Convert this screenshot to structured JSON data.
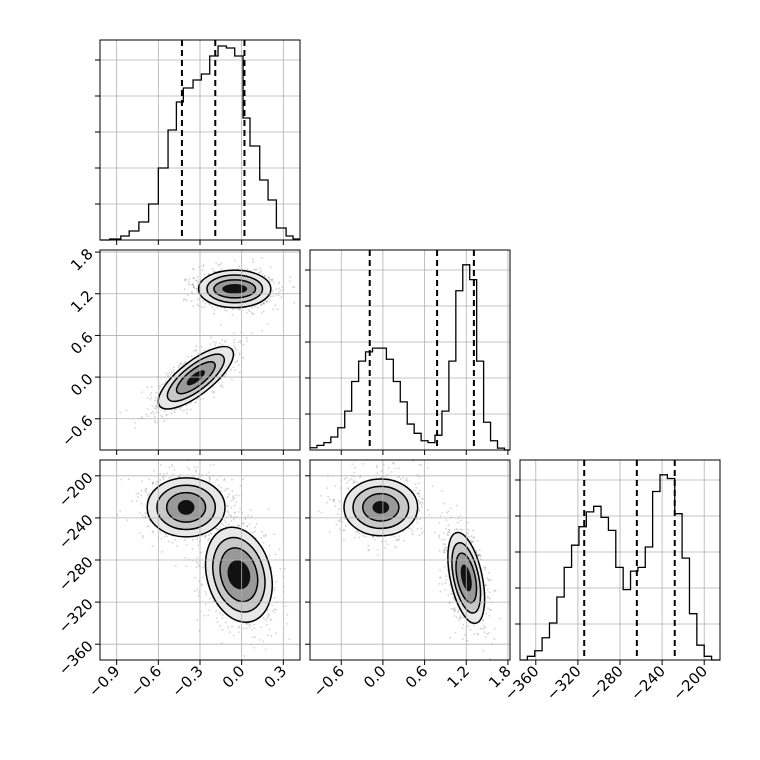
{
  "chart_data": {
    "type": "corner",
    "title": "",
    "parameters": [
      {
        "xlim": [
          -1.02,
          0.42
        ],
        "ticks": [
          -0.9,
          -0.6,
          -0.3,
          0.0,
          0.3
        ],
        "tick_labels": [
          "−0.9",
          "−0.6",
          "−0.3",
          "0.0",
          "0.3"
        ]
      },
      {
        "xlim": [
          -1.05,
          1.83
        ],
        "ticks": [
          -0.6,
          0.0,
          0.6,
          1.2,
          1.8
        ],
        "tick_labels": [
          "−0.6",
          "0.0",
          "0.6",
          "1.2",
          "1.8"
        ]
      },
      {
        "xlim": [
          -375,
          -185
        ],
        "ticks": [
          -360,
          -320,
          -280,
          -240,
          -200
        ],
        "tick_labels": [
          "−360",
          "−320",
          "−280",
          "−240",
          "−200"
        ]
      }
    ],
    "axis_labels": [],
    "grid": true,
    "quantiles": [
      [
        -0.43,
        -0.19,
        0.02
      ],
      [
        -0.19,
        0.78,
        1.31
      ],
      [
        -314,
        -264,
        -228
      ]
    ],
    "histograms": [
      {
        "edges": [
          -1.02,
          -0.95,
          -0.87,
          -0.81,
          -0.74,
          -0.67,
          -0.6,
          -0.53,
          -0.47,
          -0.42,
          -0.35,
          -0.29,
          -0.23,
          -0.17,
          -0.11,
          -0.05,
          0.01,
          0.06,
          0.13,
          0.19,
          0.25,
          0.32,
          0.37,
          0.42
        ],
        "counts": [
          0.0,
          0.005,
          0.02,
          0.045,
          0.09,
          0.18,
          0.36,
          0.55,
          0.69,
          0.76,
          0.8,
          0.83,
          0.92,
          0.97,
          0.96,
          0.92,
          0.61,
          0.47,
          0.3,
          0.2,
          0.06,
          0.02,
          0.005
        ],
        "ymax": 1.0
      },
      {
        "edges": [
          -1.05,
          -0.95,
          -0.85,
          -0.75,
          -0.65,
          -0.55,
          -0.45,
          -0.35,
          -0.25,
          -0.15,
          -0.05,
          0.05,
          0.15,
          0.25,
          0.35,
          0.45,
          0.55,
          0.65,
          0.75,
          0.85,
          0.95,
          1.05,
          1.15,
          1.25,
          1.35,
          1.45,
          1.55,
          1.65,
          1.75,
          1.83
        ],
        "counts": [
          0.012,
          0.025,
          0.04,
          0.07,
          0.12,
          0.21,
          0.37,
          0.48,
          0.53,
          0.55,
          0.55,
          0.49,
          0.37,
          0.26,
          0.14,
          0.09,
          0.05,
          0.04,
          0.08,
          0.21,
          0.48,
          0.86,
          1.0,
          0.92,
          0.48,
          0.15,
          0.05,
          0.01,
          0.0
        ],
        "ymax": 1.08
      },
      {
        "edges": [
          -375,
          -368,
          -361,
          -354,
          -347,
          -340,
          -333,
          -326,
          -319,
          -312,
          -305,
          -298,
          -291,
          -284,
          -277,
          -270,
          -263,
          -256,
          -249,
          -242,
          -235,
          -228,
          -221,
          -214,
          -207,
          -200,
          -193,
          -185
        ],
        "counts": [
          0.0,
          0.02,
          0.05,
          0.12,
          0.2,
          0.34,
          0.5,
          0.62,
          0.72,
          0.8,
          0.83,
          0.77,
          0.7,
          0.5,
          0.38,
          0.48,
          0.5,
          0.61,
          0.91,
          1.0,
          0.98,
          0.79,
          0.55,
          0.25,
          0.08,
          0.02,
          0.0
        ],
        "ymax": 1.08
      }
    ],
    "pairs": [
      {
        "row": 1,
        "col": 0,
        "modes": [
          {
            "center": [
              -0.05,
              1.27
            ],
            "rx": [
              0.09,
              0.15,
              0.2,
              0.26
            ],
            "ry": [
              0.07,
              0.13,
              0.2,
              0.27
            ],
            "rotation_deg": 0
          },
          {
            "center": [
              -0.33,
              -0.01
            ],
            "rx": [
              0.08,
              0.17,
              0.25,
              0.33
            ],
            "ry": [
              0.06,
              0.12,
              0.18,
              0.24
            ],
            "rotation_deg": -38
          }
        ]
      },
      {
        "row": 2,
        "col": 0,
        "modes": [
          {
            "center": [
              -0.4,
              -230
            ],
            "rx": [
              0.06,
              0.14,
              0.21,
              0.28
            ],
            "ry": [
              7,
              14,
              21,
              28
            ],
            "rotation_deg": 0
          },
          {
            "center": [
              -0.02,
              -294
            ],
            "rx": [
              0.08,
              0.13,
              0.18,
              0.23
            ],
            "ry": [
              14,
              26,
              36,
              46
            ],
            "rotation_deg": -15
          }
        ]
      },
      {
        "row": 2,
        "col": 1,
        "modes": [
          {
            "center": [
              -0.03,
              -230
            ],
            "rx": [
              0.12,
              0.26,
              0.4,
              0.53
            ],
            "ry": [
              6,
              13,
              20,
              27
            ],
            "rotation_deg": 0
          },
          {
            "center": [
              1.2,
              -297
            ],
            "rx": [
              0.07,
              0.13,
              0.18,
              0.23
            ],
            "ry": [
              13,
              24,
              34,
              44
            ],
            "rotation_deg": -12
          }
        ]
      }
    ]
  },
  "colors": {
    "background": "#ffffff",
    "axis": "#000000",
    "grid": "#b0b0b0",
    "scatter": "#808080",
    "contour": "#000000",
    "fill_light": "#e8e8e8",
    "fill_mid": "#c8c8c8",
    "fill_dark": "#999999",
    "fill_core": "#111111"
  }
}
